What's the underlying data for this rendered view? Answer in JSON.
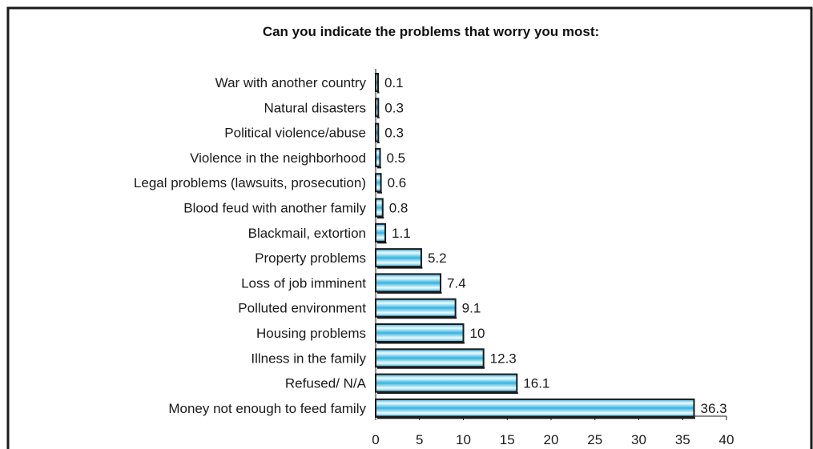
{
  "chart_data": {
    "type": "bar",
    "orientation": "horizontal",
    "title": "Can you indicate the problems that worry you most:",
    "categories": [
      "War with another country",
      "Natural disasters",
      "Political violence/abuse",
      "Violence in the neighborhood",
      "Legal problems (lawsuits, prosecution)",
      "Blood feud with another family",
      "Blackmail, extortion",
      "Property problems",
      "Loss of job imminent",
      "Polluted environment",
      "Housing problems",
      "Illness in the family",
      "Refused/ N/A",
      "Money not enough to feed family"
    ],
    "values": [
      0.1,
      0.3,
      0.3,
      0.5,
      0.6,
      0.8,
      1.1,
      5.2,
      7.4,
      9.1,
      10,
      12.3,
      16.1,
      36.3
    ],
    "value_labels": [
      "0.1",
      "0.3",
      "0.3",
      "0.5",
      "0.6",
      "0.8",
      "1.1",
      "5.2",
      "7.4",
      "9.1",
      "10",
      "12.3",
      "16.1",
      "36.3"
    ],
    "xlim": [
      0,
      40
    ],
    "xticks": [
      "0",
      "5",
      "10",
      "15",
      "20",
      "25",
      "30",
      "35",
      "40"
    ],
    "grid": false,
    "legend": "none",
    "colors": {
      "bar_edge": "#1a1a1a",
      "bar_light": "#f2fbff",
      "bar_dark": "#33b4e0",
      "axis": "#1a1a1a",
      "frame": "#1a1a1a"
    }
  }
}
